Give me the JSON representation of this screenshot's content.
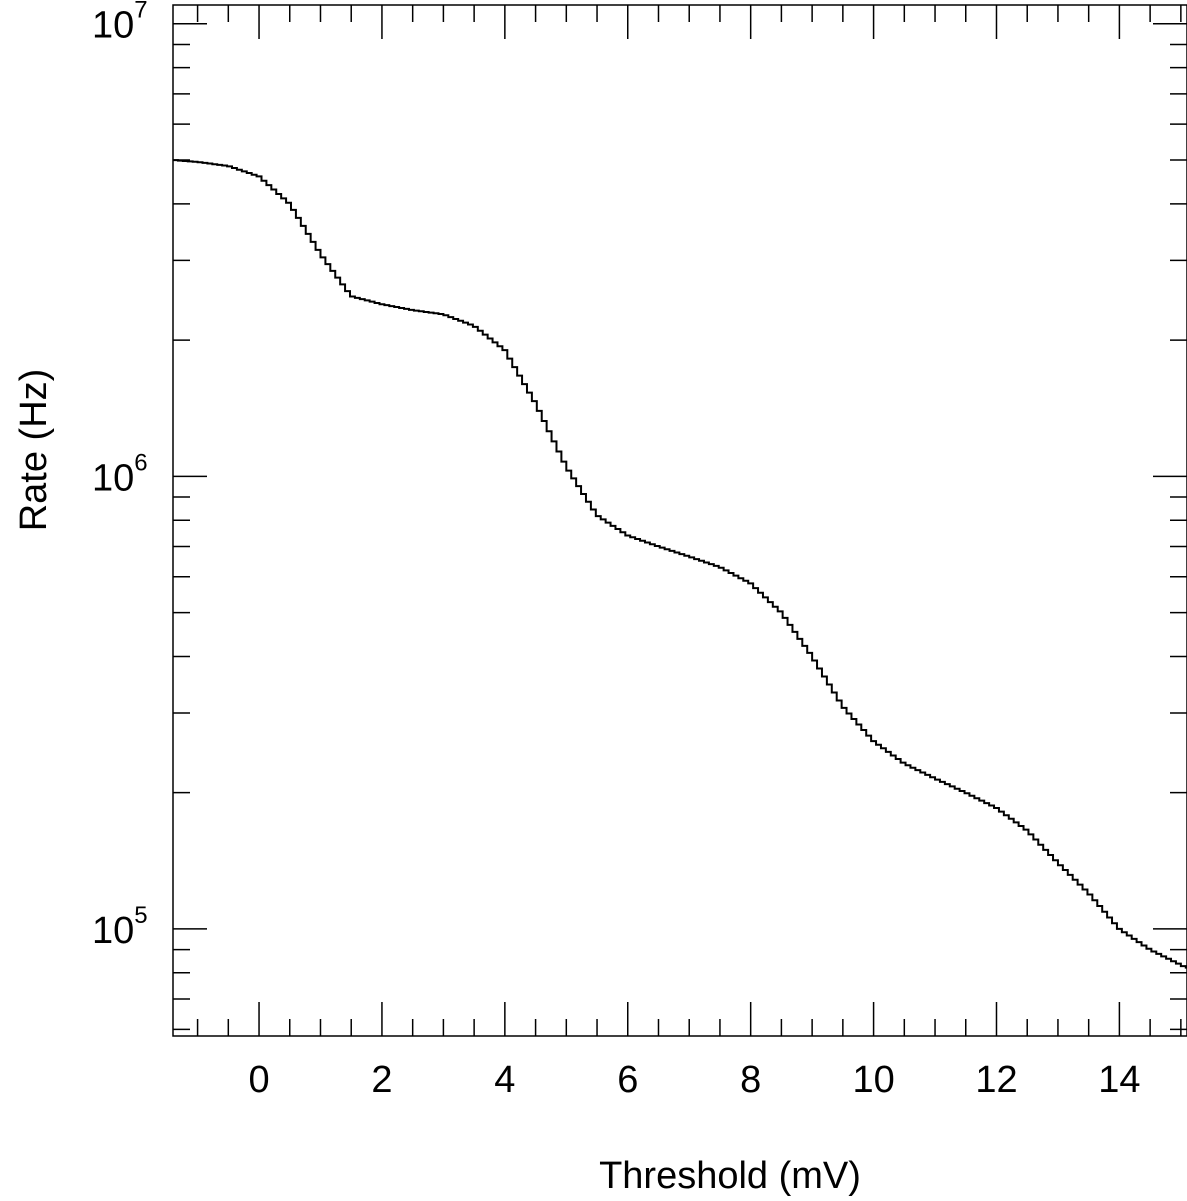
{
  "chart_data": {
    "type": "line",
    "step": true,
    "xlabel": "Threshold (mV)",
    "ylabel": "Rate (Hz)",
    "xlim": [
      -1.4,
      15.1
    ],
    "ylim": [
      58000,
      11000000
    ],
    "log_y": true,
    "grid": false,
    "legend": "none",
    "x_ticks": [
      "0",
      "2",
      "4",
      "6",
      "8",
      "10",
      "12",
      "14"
    ],
    "y_ticks": [
      {
        "base": "10",
        "exponent": "5"
      },
      {
        "base": "10",
        "exponent": "6"
      },
      {
        "base": "10",
        "exponent": "7"
      }
    ],
    "line_color": "#000000",
    "series": [
      {
        "x": [
          -1.4,
          -1.0,
          -0.5,
          0.0,
          0.5,
          1.0,
          1.5,
          2.0,
          2.5,
          3.0,
          3.5,
          4.0,
          4.5,
          5.0,
          5.5,
          6.0,
          6.5,
          7.0,
          7.5,
          8.0,
          8.5,
          9.0,
          9.5,
          10.0,
          10.5,
          11.0,
          11.5,
          12.0,
          12.5,
          13.0,
          13.5,
          14.0,
          14.5,
          15.1
        ],
        "y": [
          5000000,
          4950000,
          4850000,
          4600000,
          4000000,
          3100000,
          2500000,
          2400000,
          2330000,
          2280000,
          2150000,
          1900000,
          1450000,
          1050000,
          820000,
          740000,
          700000,
          665000,
          630000,
          580000,
          500000,
          400000,
          310000,
          260000,
          232000,
          215000,
          200000,
          185000,
          165000,
          140000,
          120000,
          100000,
          90000,
          82000
        ]
      }
    ]
  }
}
